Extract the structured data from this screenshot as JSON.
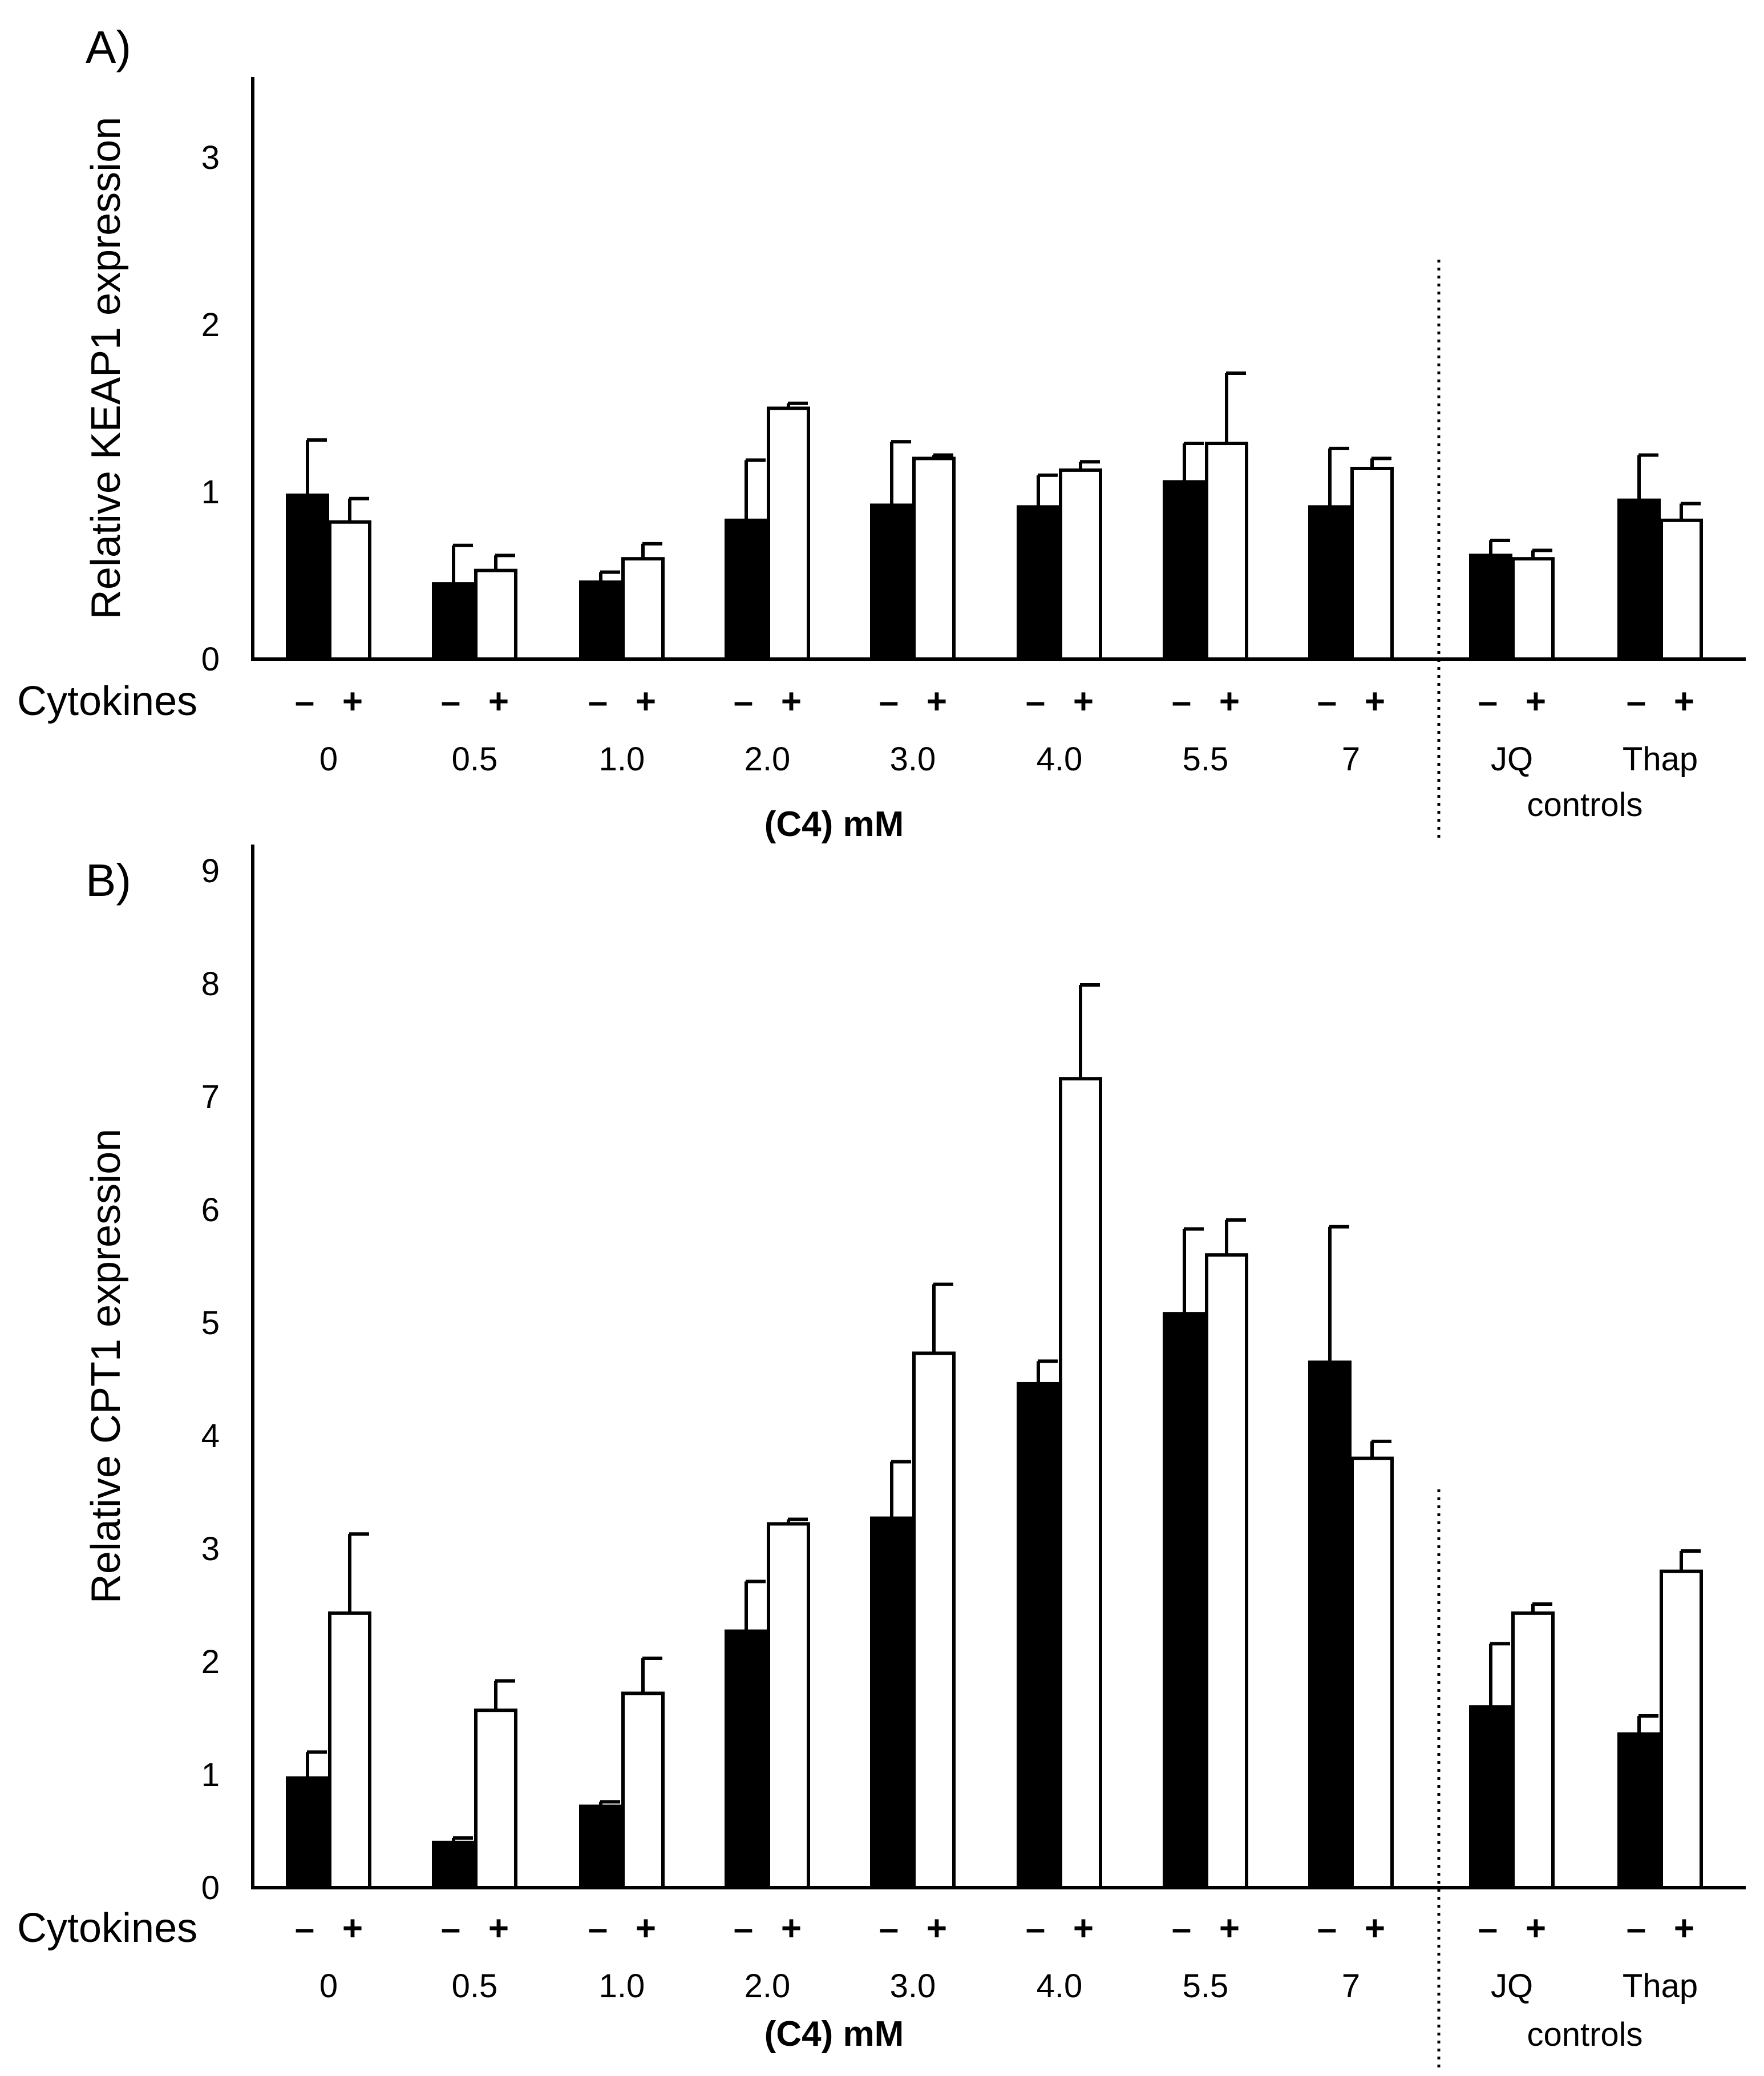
{
  "chart_data": [
    {
      "type": "bar",
      "panel_label": "A)",
      "ylabel": "Relative KEAP1 expression",
      "ylim": [
        0,
        3.5
      ],
      "yticks": [
        "0",
        "1",
        "2",
        "3"
      ],
      "row_label": "Cytokines",
      "minus_label": "–",
      "plus_label": "+",
      "groups": [
        "0",
        "0.5",
        "1.0",
        "2.0",
        "3.0",
        "4.0",
        "5.5",
        "7",
        "JQ",
        "Thap"
      ],
      "xlabel": "(C4) mM",
      "controls_label": "controls",
      "series": [
        {
          "name": "– cytokines",
          "color": "#000000",
          "values": [
            0.98,
            0.45,
            0.46,
            0.83,
            0.92,
            0.91,
            1.06,
            0.91,
            0.62,
            0.95
          ],
          "errors": [
            0.33,
            0.23,
            0.06,
            0.36,
            0.38,
            0.19,
            0.23,
            0.35,
            0.09,
            0.27
          ]
        },
        {
          "name": "+ cytokines",
          "color": "#ffffff",
          "values": [
            0.82,
            0.53,
            0.6,
            1.5,
            1.2,
            1.13,
            1.29,
            1.14,
            0.6,
            0.83
          ],
          "errors": [
            0.14,
            0.09,
            0.09,
            0.03,
            0.02,
            0.05,
            0.42,
            0.06,
            0.05,
            0.1
          ]
        }
      ]
    },
    {
      "type": "bar",
      "panel_label": "B)",
      "ylabel": "Relative CPT1 expression",
      "ylim": [
        0,
        9
      ],
      "yticks": [
        "0",
        "1",
        "2",
        "3",
        "4",
        "5",
        "6",
        "7",
        "8",
        "9"
      ],
      "row_label": "Cytokines",
      "minus_label": "–",
      "plus_label": "+",
      "groups": [
        "0",
        "0.5",
        "1.0",
        "2.0",
        "3.0",
        "4.0",
        "5.5",
        "7",
        "JQ",
        "Thap"
      ],
      "xlabel": "(C4) mM",
      "controls_label": "controls",
      "series": [
        {
          "name": "– cytokines",
          "color": "#000000",
          "values": [
            0.97,
            0.4,
            0.72,
            2.27,
            3.27,
            4.46,
            5.08,
            4.65,
            1.6,
            1.36
          ],
          "errors": [
            0.23,
            0.04,
            0.04,
            0.44,
            0.5,
            0.2,
            0.75,
            1.2,
            0.56,
            0.16
          ]
        },
        {
          "name": "+ cytokines",
          "color": "#ffffff",
          "values": [
            2.43,
            1.57,
            1.72,
            3.22,
            4.73,
            7.16,
            5.6,
            3.8,
            2.43,
            2.8
          ],
          "errors": [
            0.7,
            0.26,
            0.31,
            0.04,
            0.61,
            0.83,
            0.31,
            0.15,
            0.08,
            0.18
          ]
        }
      ]
    }
  ]
}
